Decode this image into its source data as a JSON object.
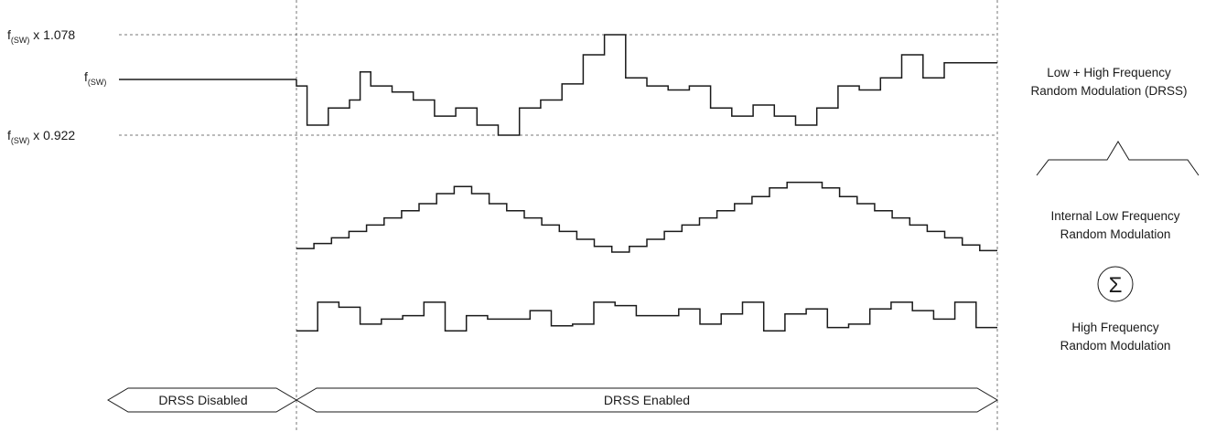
{
  "levels": {
    "high": {
      "base": "f",
      "subscript": "(SW)",
      "suffix": " x 1.078"
    },
    "nominal": {
      "base": "f",
      "subscript": "(SW)"
    },
    "low": {
      "base": "f",
      "subscript": "(SW)",
      "suffix": " x 0.922"
    }
  },
  "labels": {
    "combined_line1": "Low + High Frequency",
    "combined_line2": "Random Modulation (DRSS)",
    "low_line1": "Internal Low Frequency",
    "low_line2": "Random Modulation",
    "sum_symbol": "Σ",
    "high_line1": "High Frequency",
    "high_line2": "Random Modulation"
  },
  "phases": {
    "disabled": "DRSS Disabled",
    "enabled": "DRSS Enabled"
  },
  "waveforms": {
    "combined_modulation": [
      0.63,
      0.49,
      0.49,
      0.43,
      0.43,
      0.35,
      0.35,
      0.19,
      0.19,
      0.27,
      0.27,
      0.1,
      0.1,
      0.0,
      0.0,
      0.27,
      0.27,
      0.35,
      0.35,
      0.51,
      0.51,
      0.8,
      0.8,
      1.0,
      1.0,
      0.57,
      0.57,
      0.49,
      0.49,
      0.45,
      0.45,
      0.49,
      0.49,
      0.27,
      0.27,
      0.19,
      0.19,
      0.3,
      0.3,
      0.19,
      0.19,
      0.1,
      0.1,
      0.27,
      0.27,
      0.49,
      0.49,
      0.45,
      0.45,
      0.57,
      0.57,
      0.8,
      0.8,
      0.57,
      0.57,
      0.72,
      0.72,
      0.72,
      0.72,
      0.72
    ],
    "combined_first": [
      0.49,
      0.1,
      0.1,
      0.27,
      0.27,
      0.35
    ],
    "low_frequency": [
      0.05,
      0.12,
      0.2,
      0.29,
      0.38,
      0.48,
      0.58,
      0.68,
      0.82,
      0.92,
      0.82,
      0.68,
      0.58,
      0.48,
      0.38,
      0.29,
      0.18,
      0.08,
      0.0,
      0.08,
      0.18,
      0.29,
      0.38,
      0.48,
      0.58,
      0.68,
      0.78,
      0.9,
      0.98,
      0.98,
      0.9,
      0.78,
      0.68,
      0.58,
      0.48,
      0.38,
      0.29,
      0.2,
      0.1,
      0.02
    ],
    "high_frequency": [
      0.1,
      0.95,
      0.8,
      0.3,
      0.45,
      0.55,
      0.95,
      0.1,
      0.55,
      0.45,
      0.45,
      0.7,
      0.25,
      0.3,
      0.95,
      0.85,
      0.55,
      0.55,
      0.75,
      0.3,
      0.6,
      0.95,
      0.1,
      0.6,
      0.75,
      0.2,
      0.3,
      0.75,
      0.95,
      0.7,
      0.45,
      0.95,
      0.2
    ]
  }
}
